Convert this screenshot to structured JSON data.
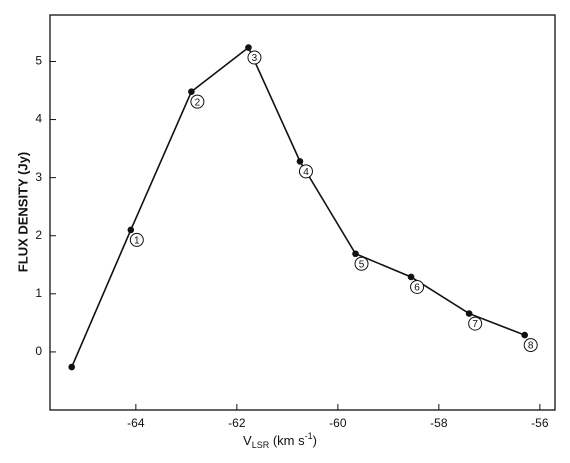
{
  "chart_data": {
    "type": "line",
    "x_label_parts": [
      "V",
      "LSR",
      " (km s",
      "-1",
      ")"
    ],
    "y_label": "FLUX DENSITY (Jy)",
    "x": [
      -65.27,
      -64.1,
      -62.9,
      -61.77,
      -60.75,
      -59.65,
      -58.55,
      -57.4,
      -56.3
    ],
    "series": [
      {
        "color": "#111111",
        "values": [
          -0.26,
          2.1,
          4.48,
          5.24,
          3.28,
          1.69,
          1.29,
          0.66,
          0.29
        ]
      }
    ],
    "point_labels": [
      null,
      "1",
      "2",
      "3",
      "4",
      "5",
      "6",
      "7",
      "8"
    ],
    "xlim": [
      -65.7,
      -55.7
    ],
    "xticks": [
      -64,
      -62,
      -60,
      -58,
      -56
    ],
    "ylim": [
      -1,
      5.8
    ],
    "yticks": [
      0,
      1,
      2,
      3,
      4,
      5
    ],
    "grid": false
  }
}
